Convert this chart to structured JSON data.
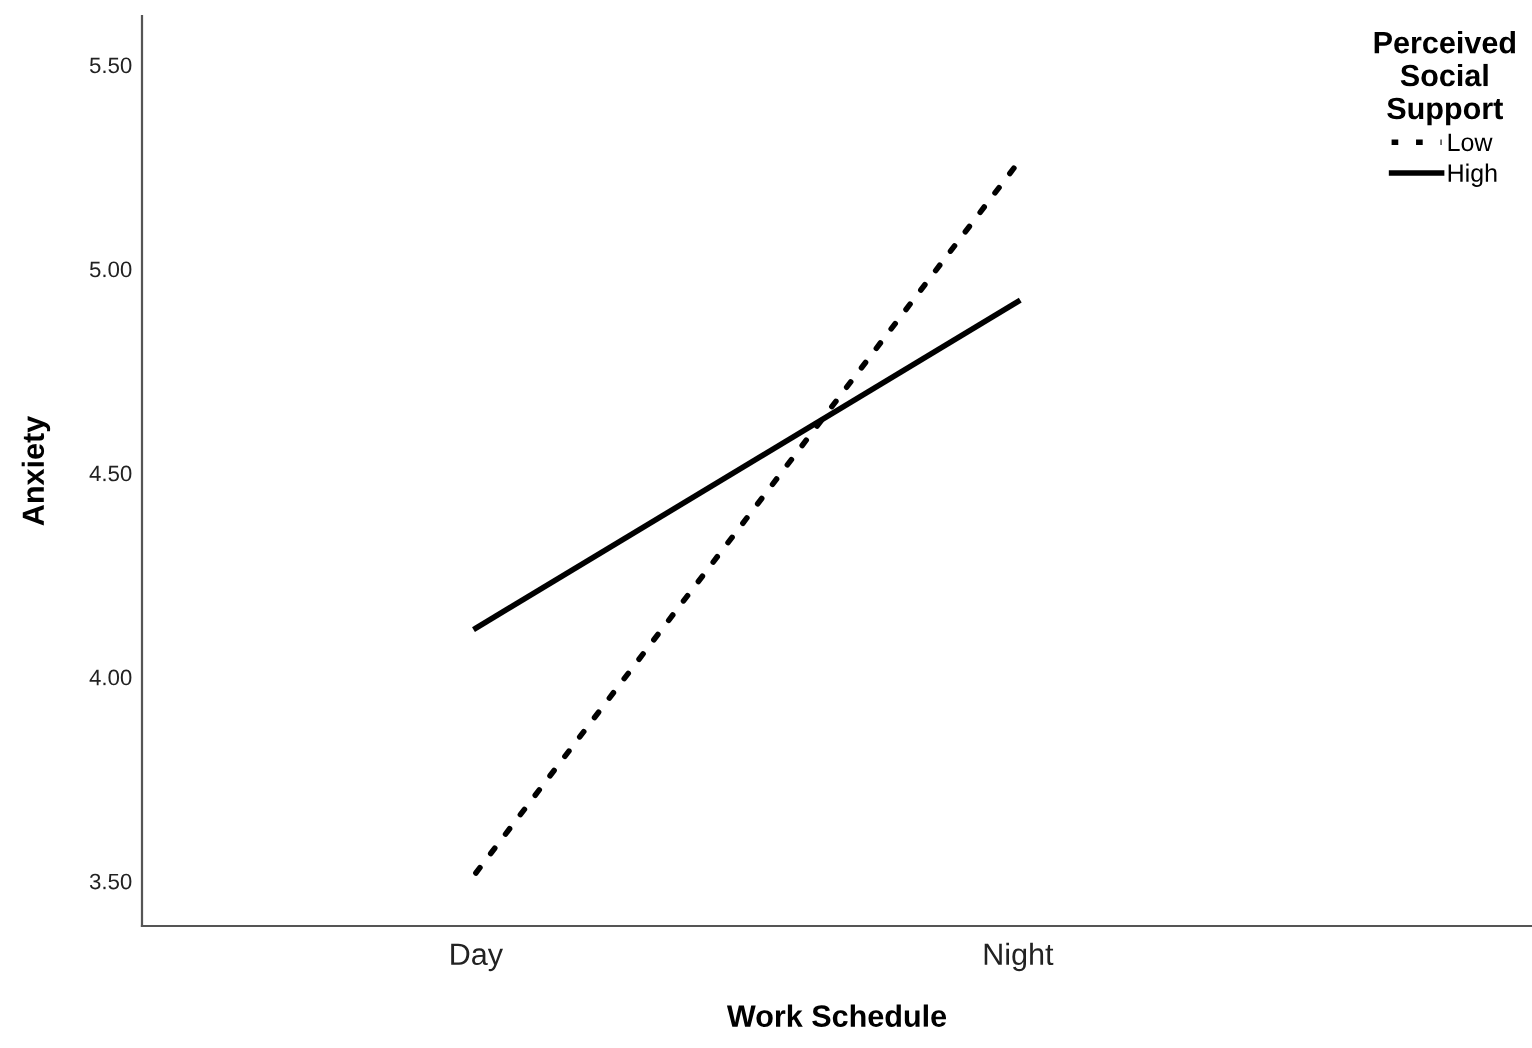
{
  "chart_data": {
    "type": "line",
    "xlabel": "Work Schedule",
    "ylabel": "Anxiety",
    "legend_title": "Perceived\nSocial\nSupport",
    "categories": [
      "Day",
      "Night"
    ],
    "series": [
      {
        "name": "Low",
        "color": "#000000",
        "line_style": "dotted",
        "values": [
          3.52,
          5.26
        ]
      },
      {
        "name": "High",
        "color": "#000000",
        "line_style": "solid",
        "values": [
          4.12,
          4.92
        ]
      }
    ],
    "ylim": [
      3.39,
      5.62
    ],
    "yticks": [
      {
        "value": 3.5,
        "label": "3.50"
      },
      {
        "value": 4.0,
        "label": "4.00"
      },
      {
        "value": 4.5,
        "label": "4.50"
      },
      {
        "value": 5.0,
        "label": "5.00"
      },
      {
        "value": 5.5,
        "label": "5.50"
      }
    ],
    "grid": false,
    "legend": "top right",
    "marker": "none"
  }
}
